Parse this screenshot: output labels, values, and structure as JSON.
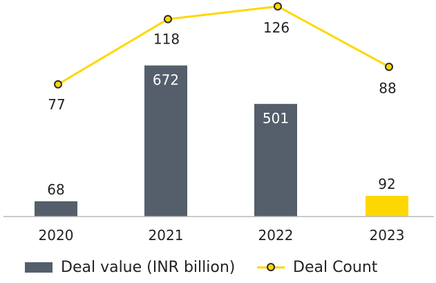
{
  "chart_data": {
    "type": "bar",
    "categories": [
      "2020",
      "2021",
      "2022",
      "2023"
    ],
    "series": [
      {
        "name": "Deal value (INR billion)",
        "type": "bar",
        "values": [
          68,
          672,
          501,
          92
        ],
        "colors": [
          "#545f6b",
          "#545f6b",
          "#545f6b",
          "#ffd700"
        ]
      },
      {
        "name": "Deal Count",
        "type": "line",
        "values": [
          77,
          118,
          126,
          88
        ],
        "color": "#ffd700",
        "marker_edge": "#2b2b2b"
      }
    ],
    "legend_position": "bottom-left",
    "grid": false
  }
}
